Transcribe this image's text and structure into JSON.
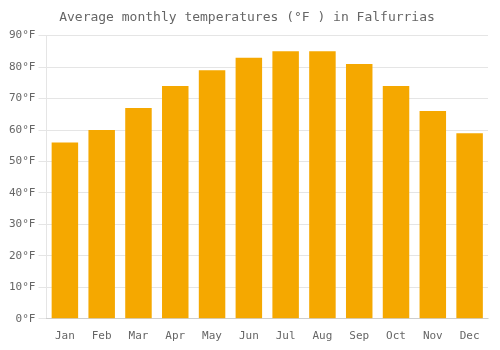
{
  "chart_data": {
    "type": "bar",
    "title": "Average monthly temperatures (°F ) in Falfurrias",
    "categories": [
      "Jan",
      "Feb",
      "Mar",
      "Apr",
      "May",
      "Jun",
      "Jul",
      "Aug",
      "Sep",
      "Oct",
      "Nov",
      "Dec"
    ],
    "values": [
      56,
      60,
      67,
      74,
      79,
      83,
      85,
      85,
      81,
      74,
      66,
      59
    ],
    "color": "#F5A800",
    "ylim": [
      0,
      90
    ],
    "yticks": [
      {
        "value": 0,
        "label": "0°F"
      },
      {
        "value": 10,
        "label": "10°F"
      },
      {
        "value": 20,
        "label": "20°F"
      },
      {
        "value": 30,
        "label": "30°F"
      },
      {
        "value": 40,
        "label": "40°F"
      },
      {
        "value": 50,
        "label": "50°F"
      },
      {
        "value": 60,
        "label": "60°F"
      },
      {
        "value": 70,
        "label": "70°F"
      },
      {
        "value": 80,
        "label": "80°F"
      },
      {
        "value": 90,
        "label": "90°F"
      }
    ],
    "grid": true
  }
}
